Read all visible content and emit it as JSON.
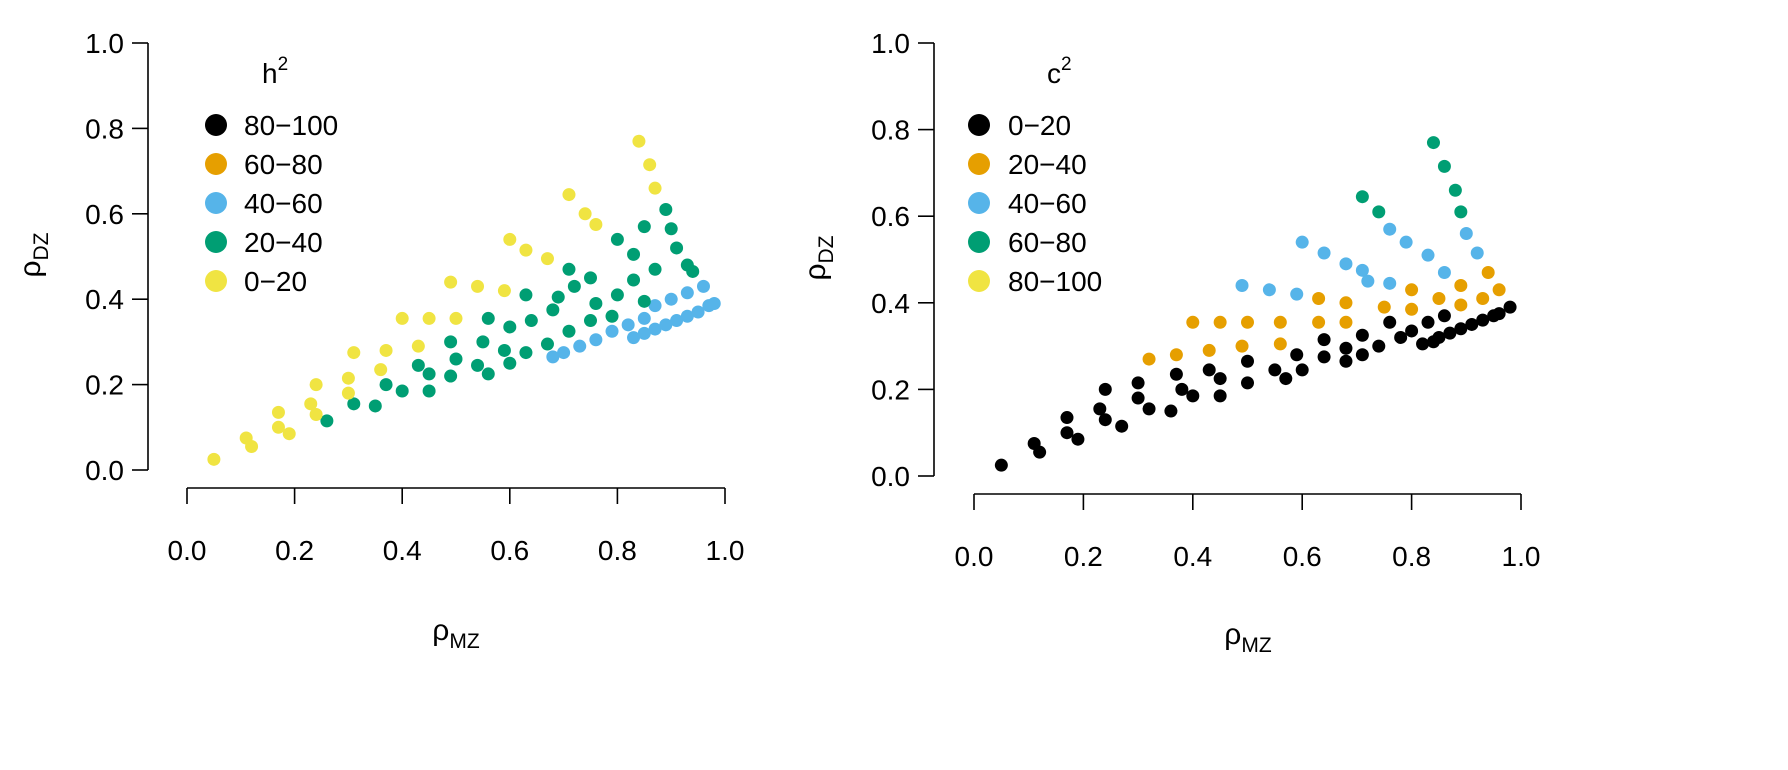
{
  "chart_data": [
    {
      "type": "scatter",
      "id": "h2",
      "xlabel": {
        "symbol": "ρ",
        "sub": "MZ"
      },
      "ylabel": {
        "symbol": "ρ",
        "sub": "DZ"
      },
      "xlim": [
        0,
        1
      ],
      "ylim": [
        0,
        1
      ],
      "xticks": [
        "0.0",
        "0.2",
        "0.4",
        "0.6",
        "0.8",
        "1.0"
      ],
      "yticks": [
        "0.0",
        "0.2",
        "0.4",
        "0.6",
        "0.8",
        "1.0"
      ],
      "legend": {
        "title": {
          "symbol": "h",
          "sup": "2"
        },
        "position": "top-left",
        "entries": [
          {
            "label": "80−100",
            "color": "#000000"
          },
          {
            "label": "60−80",
            "color": "#E69F00"
          },
          {
            "label": "40−60",
            "color": "#56B4E9"
          },
          {
            "label": "20−40",
            "color": "#009E73"
          },
          {
            "label": "0−20",
            "color": "#F0E442"
          }
        ]
      },
      "series": [
        {
          "name": "80−100",
          "color": "#000000",
          "points": []
        },
        {
          "name": "60−80",
          "color": "#E69F00",
          "points": []
        },
        {
          "name": "40−60",
          "color": "#56B4E9",
          "points": [
            [
              0.68,
              0.265
            ],
            [
              0.7,
              0.275
            ],
            [
              0.73,
              0.29
            ],
            [
              0.76,
              0.305
            ],
            [
              0.79,
              0.325
            ],
            [
              0.82,
              0.34
            ],
            [
              0.85,
              0.355
            ],
            [
              0.83,
              0.31
            ],
            [
              0.85,
              0.32
            ],
            [
              0.87,
              0.33
            ],
            [
              0.89,
              0.34
            ],
            [
              0.91,
              0.35
            ],
            [
              0.93,
              0.36
            ],
            [
              0.95,
              0.37
            ],
            [
              0.97,
              0.385
            ],
            [
              0.98,
              0.39
            ],
            [
              0.87,
              0.385
            ],
            [
              0.9,
              0.4
            ],
            [
              0.93,
              0.415
            ],
            [
              0.96,
              0.43
            ]
          ]
        },
        {
          "name": "20−40",
          "color": "#009E73",
          "points": [
            [
              0.26,
              0.115
            ],
            [
              0.31,
              0.155
            ],
            [
              0.35,
              0.15
            ],
            [
              0.37,
              0.2
            ],
            [
              0.4,
              0.185
            ],
            [
              0.43,
              0.245
            ],
            [
              0.45,
              0.185
            ],
            [
              0.45,
              0.225
            ],
            [
              0.49,
              0.22
            ],
            [
              0.49,
              0.3
            ],
            [
              0.5,
              0.26
            ],
            [
              0.54,
              0.245
            ],
            [
              0.55,
              0.3
            ],
            [
              0.56,
              0.225
            ],
            [
              0.56,
              0.355
            ],
            [
              0.59,
              0.28
            ],
            [
              0.6,
              0.25
            ],
            [
              0.6,
              0.335
            ],
            [
              0.63,
              0.275
            ],
            [
              0.63,
              0.41
            ],
            [
              0.64,
              0.35
            ],
            [
              0.67,
              0.295
            ],
            [
              0.68,
              0.375
            ],
            [
              0.69,
              0.405
            ],
            [
              0.71,
              0.325
            ],
            [
              0.71,
              0.47
            ],
            [
              0.72,
              0.43
            ],
            [
              0.75,
              0.35
            ],
            [
              0.75,
              0.45
            ],
            [
              0.76,
              0.39
            ],
            [
              0.79,
              0.36
            ],
            [
              0.8,
              0.41
            ],
            [
              0.8,
              0.54
            ],
            [
              0.83,
              0.445
            ],
            [
              0.83,
              0.505
            ],
            [
              0.85,
              0.395
            ],
            [
              0.85,
              0.57
            ],
            [
              0.87,
              0.47
            ],
            [
              0.89,
              0.61
            ],
            [
              0.9,
              0.565
            ],
            [
              0.91,
              0.52
            ],
            [
              0.93,
              0.48
            ],
            [
              0.94,
              0.465
            ]
          ]
        },
        {
          "name": "0−20",
          "color": "#F0E442",
          "points": [
            [
              0.05,
              0.025
            ],
            [
              0.11,
              0.075
            ],
            [
              0.12,
              0.055
            ],
            [
              0.17,
              0.135
            ],
            [
              0.17,
              0.1
            ],
            [
              0.19,
              0.085
            ],
            [
              0.23,
              0.155
            ],
            [
              0.24,
              0.2
            ],
            [
              0.24,
              0.13
            ],
            [
              0.3,
              0.215
            ],
            [
              0.3,
              0.18
            ],
            [
              0.31,
              0.275
            ],
            [
              0.36,
              0.235
            ],
            [
              0.37,
              0.28
            ],
            [
              0.4,
              0.355
            ],
            [
              0.43,
              0.29
            ],
            [
              0.45,
              0.355
            ],
            [
              0.49,
              0.44
            ],
            [
              0.5,
              0.355
            ],
            [
              0.54,
              0.43
            ],
            [
              0.59,
              0.42
            ],
            [
              0.6,
              0.54
            ],
            [
              0.63,
              0.515
            ],
            [
              0.67,
              0.495
            ],
            [
              0.71,
              0.645
            ],
            [
              0.74,
              0.6
            ],
            [
              0.76,
              0.575
            ],
            [
              0.84,
              0.77
            ],
            [
              0.86,
              0.715
            ],
            [
              0.87,
              0.66
            ]
          ]
        }
      ]
    },
    {
      "type": "scatter",
      "id": "c2",
      "xlabel": {
        "symbol": "ρ",
        "sub": "MZ"
      },
      "ylabel": {
        "symbol": "ρ",
        "sub": "DZ"
      },
      "xlim": [
        0,
        1
      ],
      "ylim": [
        0,
        1
      ],
      "xticks": [
        "0.0",
        "0.2",
        "0.4",
        "0.6",
        "0.8",
        "1.0"
      ],
      "yticks": [
        "0.0",
        "0.2",
        "0.4",
        "0.6",
        "0.8",
        "1.0"
      ],
      "legend": {
        "title": {
          "symbol": "c",
          "sup": "2"
        },
        "position": "top-left",
        "entries": [
          {
            "label": "0−20",
            "color": "#000000"
          },
          {
            "label": "20−40",
            "color": "#E69F00"
          },
          {
            "label": "40−60",
            "color": "#56B4E9"
          },
          {
            "label": "60−80",
            "color": "#009E73"
          },
          {
            "label": "80−100",
            "color": "#F0E442"
          }
        ]
      },
      "series": [
        {
          "name": "0−20",
          "color": "#000000",
          "points": [
            [
              0.05,
              0.025
            ],
            [
              0.11,
              0.075
            ],
            [
              0.12,
              0.055
            ],
            [
              0.17,
              0.135
            ],
            [
              0.17,
              0.1
            ],
            [
              0.19,
              0.085
            ],
            [
              0.23,
              0.155
            ],
            [
              0.24,
              0.2
            ],
            [
              0.24,
              0.13
            ],
            [
              0.27,
              0.115
            ],
            [
              0.3,
              0.215
            ],
            [
              0.3,
              0.18
            ],
            [
              0.32,
              0.155
            ],
            [
              0.36,
              0.15
            ],
            [
              0.37,
              0.235
            ],
            [
              0.38,
              0.2
            ],
            [
              0.4,
              0.185
            ],
            [
              0.43,
              0.245
            ],
            [
              0.45,
              0.225
            ],
            [
              0.45,
              0.185
            ],
            [
              0.5,
              0.215
            ],
            [
              0.5,
              0.265
            ],
            [
              0.55,
              0.245
            ],
            [
              0.57,
              0.225
            ],
            [
              0.59,
              0.28
            ],
            [
              0.6,
              0.245
            ],
            [
              0.64,
              0.275
            ],
            [
              0.64,
              0.315
            ],
            [
              0.68,
              0.295
            ],
            [
              0.68,
              0.265
            ],
            [
              0.71,
              0.325
            ],
            [
              0.71,
              0.28
            ],
            [
              0.74,
              0.3
            ],
            [
              0.76,
              0.355
            ],
            [
              0.78,
              0.32
            ],
            [
              0.8,
              0.335
            ],
            [
              0.82,
              0.305
            ],
            [
              0.83,
              0.355
            ],
            [
              0.84,
              0.31
            ],
            [
              0.85,
              0.32
            ],
            [
              0.86,
              0.37
            ],
            [
              0.87,
              0.33
            ],
            [
              0.89,
              0.34
            ],
            [
              0.91,
              0.35
            ],
            [
              0.93,
              0.36
            ],
            [
              0.95,
              0.37
            ],
            [
              0.96,
              0.375
            ],
            [
              0.98,
              0.39
            ]
          ]
        },
        {
          "name": "20−40",
          "color": "#E69F00",
          "points": [
            [
              0.32,
              0.27
            ],
            [
              0.37,
              0.28
            ],
            [
              0.4,
              0.355
            ],
            [
              0.43,
              0.29
            ],
            [
              0.45,
              0.355
            ],
            [
              0.49,
              0.3
            ],
            [
              0.5,
              0.355
            ],
            [
              0.56,
              0.305
            ],
            [
              0.56,
              0.355
            ],
            [
              0.63,
              0.355
            ],
            [
              0.63,
              0.41
            ],
            [
              0.68,
              0.4
            ],
            [
              0.68,
              0.355
            ],
            [
              0.75,
              0.39
            ],
            [
              0.8,
              0.43
            ],
            [
              0.8,
              0.385
            ],
            [
              0.85,
              0.41
            ],
            [
              0.89,
              0.395
            ],
            [
              0.89,
              0.44
            ],
            [
              0.93,
              0.41
            ],
            [
              0.94,
              0.47
            ],
            [
              0.96,
              0.43
            ]
          ]
        },
        {
          "name": "40−60",
          "color": "#56B4E9",
          "points": [
            [
              0.49,
              0.44
            ],
            [
              0.54,
              0.43
            ],
            [
              0.59,
              0.42
            ],
            [
              0.6,
              0.54
            ],
            [
              0.64,
              0.515
            ],
            [
              0.68,
              0.49
            ],
            [
              0.71,
              0.475
            ],
            [
              0.72,
              0.45
            ],
            [
              0.76,
              0.445
            ],
            [
              0.76,
              0.57
            ],
            [
              0.79,
              0.54
            ],
            [
              0.83,
              0.51
            ],
            [
              0.86,
              0.47
            ],
            [
              0.9,
              0.56
            ],
            [
              0.92,
              0.515
            ]
          ]
        },
        {
          "name": "60−80",
          "color": "#009E73",
          "points": [
            [
              0.71,
              0.645
            ],
            [
              0.74,
              0.61
            ],
            [
              0.84,
              0.77
            ],
            [
              0.86,
              0.715
            ],
            [
              0.88,
              0.66
            ],
            [
              0.89,
              0.61
            ]
          ]
        },
        {
          "name": "80−100",
          "color": "#F0E442",
          "points": []
        }
      ]
    }
  ]
}
